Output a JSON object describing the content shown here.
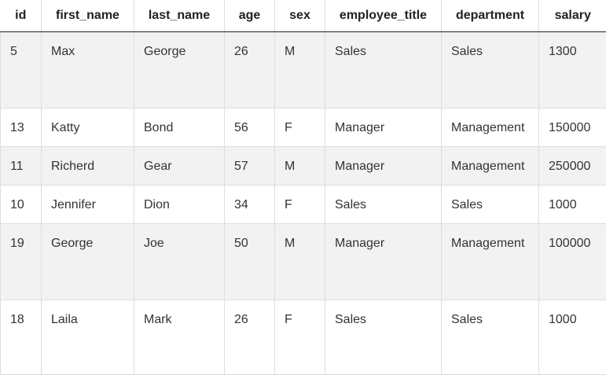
{
  "table": {
    "columns": [
      "id",
      "first_name",
      "last_name",
      "age",
      "sex",
      "employee_title",
      "department",
      "salary"
    ],
    "rows": [
      [
        "5",
        "Max",
        "George",
        "26",
        "M",
        "Sales",
        "Sales",
        "1300"
      ],
      [
        "13",
        "Katty",
        "Bond",
        "56",
        "F",
        "Manager",
        "Management",
        "150000"
      ],
      [
        "11",
        "Richerd",
        "Gear",
        "57",
        "M",
        "Manager",
        "Management",
        "250000"
      ],
      [
        "10",
        "Jennifer",
        "Dion",
        "34",
        "F",
        "Sales",
        "Sales",
        "1000"
      ],
      [
        "19",
        "George",
        "Joe",
        "50",
        "M",
        "Manager",
        "Management",
        "100000"
      ],
      [
        "18",
        "Laila",
        "Mark",
        "26",
        "F",
        "Sales",
        "Sales",
        "1000"
      ]
    ]
  }
}
